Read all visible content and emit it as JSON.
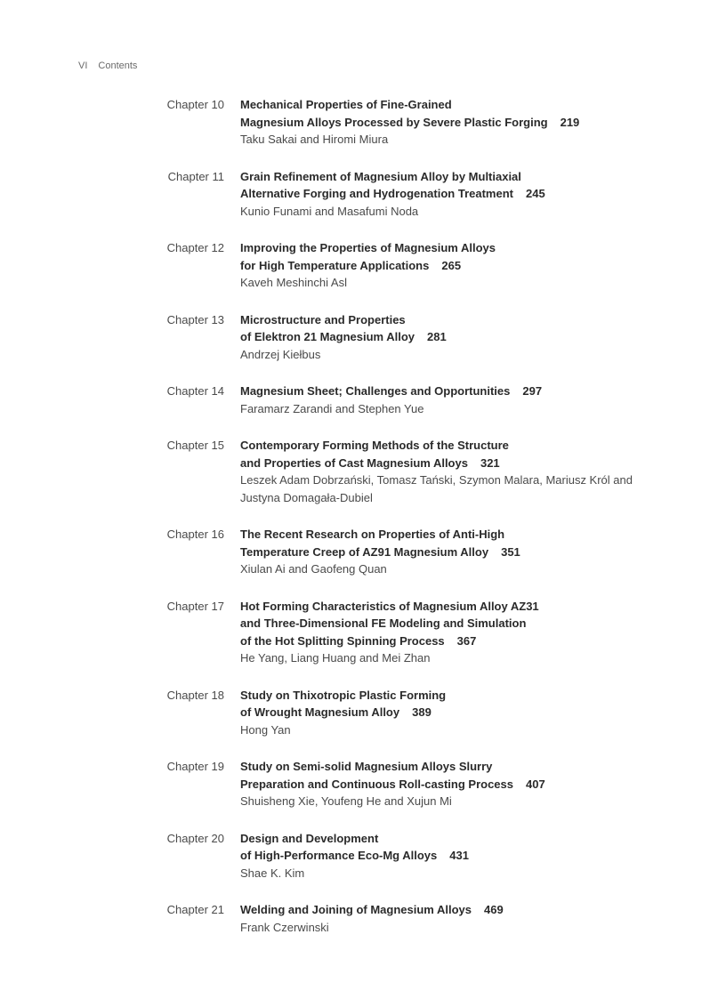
{
  "header": {
    "pagenum": "VI",
    "section": "Contents"
  },
  "chapterPrefix": "Chapter",
  "entries": [
    {
      "num": "10",
      "titleLines": [
        "Mechanical Properties of Fine-Grained",
        "Magnesium Alloys Processed by Severe Plastic Forging"
      ],
      "page": "219",
      "authors": "Taku Sakai and Hiromi Miura"
    },
    {
      "num": "11",
      "titleLines": [
        "Grain Refinement of Magnesium Alloy by Multiaxial",
        "Alternative Forging and Hydrogenation Treatment"
      ],
      "page": "245",
      "authors": "Kunio Funami and Masafumi Noda"
    },
    {
      "num": "12",
      "titleLines": [
        "Improving the Properties of Magnesium Alloys",
        "for High Temperature Applications"
      ],
      "page": "265",
      "authors": "Kaveh Meshinchi Asl"
    },
    {
      "num": "13",
      "titleLines": [
        "Microstructure and Properties",
        "of Elektron 21 Magnesium Alloy"
      ],
      "page": "281",
      "authors": "Andrzej Kiełbus"
    },
    {
      "num": "14",
      "titleLines": [
        "Magnesium Sheet; Challenges and Opportunities"
      ],
      "page": "297",
      "authors": "Faramarz Zarandi and Stephen Yue"
    },
    {
      "num": "15",
      "titleLines": [
        "Contemporary Forming Methods of the Structure",
        "and Properties of Cast Magnesium Alloys"
      ],
      "page": "321",
      "authors": "Leszek Adam Dobrzański, Tomasz Tański, Szymon Malara, Mariusz Król and Justyna Domagała-Dubiel"
    },
    {
      "num": "16",
      "titleLines": [
        "The Recent Research on Properties of Anti-High",
        "Temperature Creep of AZ91 Magnesium Alloy"
      ],
      "page": "351",
      "authors": "Xiulan Ai and Gaofeng Quan"
    },
    {
      "num": "17",
      "titleLines": [
        "Hot Forming Characteristics of Magnesium Alloy AZ31",
        "and Three-Dimensional FE Modeling and Simulation",
        "of the Hot Splitting Spinning Process"
      ],
      "page": "367",
      "authors": "He Yang, Liang Huang and Mei Zhan"
    },
    {
      "num": "18",
      "titleLines": [
        "Study on Thixotropic Plastic Forming",
        "of Wrought Magnesium Alloy"
      ],
      "page": "389",
      "authors": "Hong Yan"
    },
    {
      "num": "19",
      "titleLines": [
        "Study on Semi-solid Magnesium Alloys Slurry",
        "Preparation and Continuous Roll-casting Process"
      ],
      "page": "407",
      "authors": "Shuisheng Xie, Youfeng He and Xujun Mi"
    },
    {
      "num": "20",
      "titleLines": [
        "Design and Development",
        "of High-Performance Eco-Mg Alloys"
      ],
      "page": "431",
      "authors": "Shae K. Kim"
    },
    {
      "num": "21",
      "titleLines": [
        "Welding and Joining of Magnesium Alloys"
      ],
      "page": "469",
      "authors": "Frank Czerwinski"
    }
  ]
}
